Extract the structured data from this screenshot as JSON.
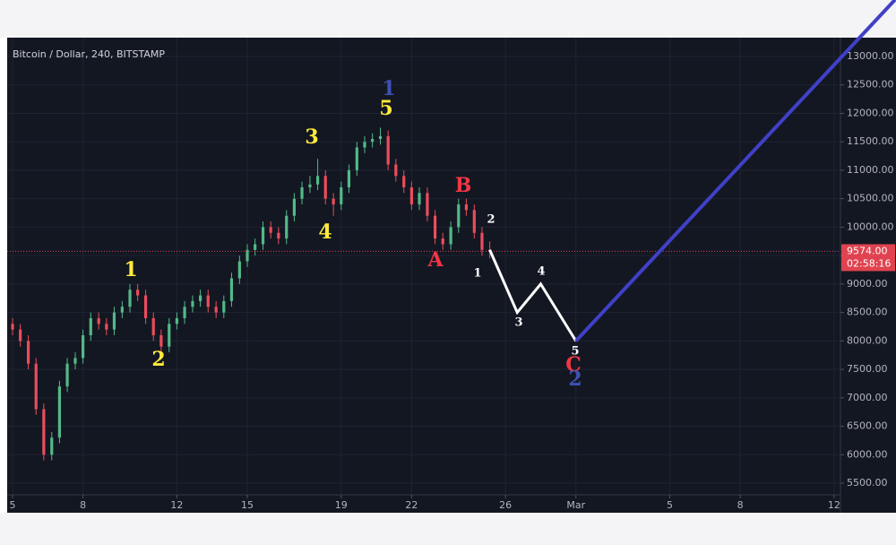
{
  "chart_data": {
    "type": "candlestick",
    "title": "Bitcoin / Dollar, 240, BITSTAMP",
    "up_color": "#53b987",
    "down_color": "#eb4d5c",
    "x": [
      0,
      0.33,
      0.67,
      1,
      1.33,
      1.67,
      2,
      2.33,
      2.67,
      3,
      3.33,
      3.67,
      4,
      4.33,
      4.67,
      5,
      5.33,
      5.67,
      6,
      6.33,
      6.67,
      7,
      7.33,
      7.67,
      8,
      8.33,
      8.67,
      9,
      9.33,
      9.67,
      10,
      10.33,
      10.67,
      11,
      11.33,
      11.67,
      12,
      12.33,
      12.67,
      13,
      13.33,
      13.67,
      14,
      14.33,
      14.67,
      15,
      15.33,
      15.67,
      16,
      16.33,
      16.67,
      17,
      17.33,
      17.67,
      18,
      18.33,
      18.67,
      19,
      19.33,
      19.67,
      20,
      20.33
    ],
    "ohlc": [
      [
        8300,
        8400,
        8100,
        8200
      ],
      [
        8200,
        8300,
        7900,
        8000
      ],
      [
        8000,
        8100,
        7500,
        7600
      ],
      [
        7600,
        7700,
        6700,
        6800
      ],
      [
        6800,
        6900,
        5900,
        6000
      ],
      [
        6000,
        6400,
        5900,
        6300
      ],
      [
        6300,
        7300,
        6200,
        7200
      ],
      [
        7200,
        7700,
        7100,
        7600
      ],
      [
        7600,
        7800,
        7500,
        7700
      ],
      [
        7700,
        8200,
        7600,
        8100
      ],
      [
        8100,
        8500,
        8000,
        8400
      ],
      [
        8400,
        8500,
        8200,
        8300
      ],
      [
        8300,
        8400,
        8100,
        8200
      ],
      [
        8200,
        8600,
        8100,
        8500
      ],
      [
        8500,
        8700,
        8400,
        8600
      ],
      [
        8600,
        9000,
        8500,
        8900
      ],
      [
        8900,
        9000,
        8700,
        8800
      ],
      [
        8800,
        8900,
        8300,
        8400
      ],
      [
        8400,
        8500,
        8000,
        8100
      ],
      [
        8100,
        8200,
        7800,
        7900
      ],
      [
        7900,
        8400,
        7800,
        8300
      ],
      [
        8300,
        8500,
        8200,
        8400
      ],
      [
        8400,
        8700,
        8300,
        8600
      ],
      [
        8600,
        8800,
        8500,
        8700
      ],
      [
        8700,
        8900,
        8600,
        8800
      ],
      [
        8800,
        8900,
        8500,
        8600
      ],
      [
        8600,
        8700,
        8400,
        8500
      ],
      [
        8500,
        8800,
        8400,
        8700
      ],
      [
        8700,
        9200,
        8600,
        9100
      ],
      [
        9100,
        9500,
        9000,
        9400
      ],
      [
        9400,
        9700,
        9300,
        9600
      ],
      [
        9600,
        9800,
        9500,
        9700
      ],
      [
        9700,
        10100,
        9600,
        10000
      ],
      [
        10000,
        10100,
        9800,
        9900
      ],
      [
        9900,
        10000,
        9700,
        9800
      ],
      [
        9800,
        10300,
        9700,
        10200
      ],
      [
        10200,
        10600,
        10100,
        10500
      ],
      [
        10500,
        10800,
        10400,
        10700
      ],
      [
        10700,
        10900,
        10600,
        10750
      ],
      [
        10750,
        11200,
        10650,
        10900
      ],
      [
        10900,
        11000,
        10400,
        10500
      ],
      [
        10500,
        10600,
        10200,
        10400
      ],
      [
        10400,
        10800,
        10300,
        10700
      ],
      [
        10700,
        11100,
        10600,
        11000
      ],
      [
        11000,
        11500,
        10900,
        11400
      ],
      [
        11400,
        11600,
        11300,
        11500
      ],
      [
        11500,
        11650,
        11400,
        11550
      ],
      [
        11550,
        11750,
        11450,
        11600
      ],
      [
        11600,
        11700,
        11000,
        11100
      ],
      [
        11100,
        11200,
        10800,
        10900
      ],
      [
        10900,
        11000,
        10600,
        10700
      ],
      [
        10700,
        10800,
        10300,
        10400
      ],
      [
        10400,
        10700,
        10300,
        10600
      ],
      [
        10600,
        10700,
        10100,
        10200
      ],
      [
        10200,
        10300,
        9700,
        9800
      ],
      [
        9800,
        9900,
        9600,
        9700
      ],
      [
        9700,
        10100,
        9600,
        10000
      ],
      [
        10000,
        10500,
        9900,
        10400
      ],
      [
        10400,
        10500,
        10200,
        10300
      ],
      [
        10300,
        10400,
        9800,
        9900
      ],
      [
        9900,
        10000,
        9500,
        9600
      ],
      [
        9600,
        9750,
        9450,
        9574
      ]
    ],
    "xlim": [
      -0.23,
      35.27
    ],
    "xticks": [
      {
        "value": 0,
        "label": "5"
      },
      {
        "value": 3,
        "label": "8"
      },
      {
        "value": 7,
        "label": "12"
      },
      {
        "value": 10,
        "label": "15"
      },
      {
        "value": 14,
        "label": "19"
      },
      {
        "value": 17,
        "label": "22"
      },
      {
        "value": 21,
        "label": "26"
      },
      {
        "value": 24,
        "label": "Mar"
      },
      {
        "value": 28,
        "label": "5"
      },
      {
        "value": 31,
        "label": "8"
      },
      {
        "value": 35,
        "label": "12"
      }
    ],
    "ylim": [
      5295,
      13331
    ],
    "yticks": [
      {
        "value": 5500,
        "label": "5500.00"
      },
      {
        "value": 6000,
        "label": "6000.00"
      },
      {
        "value": 6500,
        "label": "6500.00"
      },
      {
        "value": 7000,
        "label": "7000.00"
      },
      {
        "value": 7500,
        "label": "7500.00"
      },
      {
        "value": 8000,
        "label": "8000.00"
      },
      {
        "value": 8500,
        "label": "8500.00"
      },
      {
        "value": 9000,
        "label": "9000.00"
      },
      {
        "value": 9500,
        "label": "9500.00"
      },
      {
        "value": 10000,
        "label": "10000.00"
      },
      {
        "value": 10500,
        "label": "10500.00"
      },
      {
        "value": 11000,
        "label": "11000.00"
      },
      {
        "value": 11500,
        "label": "11500.00"
      },
      {
        "value": 12000,
        "label": "12000.00"
      },
      {
        "value": 12500,
        "label": "12500.00"
      },
      {
        "value": 13000,
        "label": "13000.00"
      }
    ],
    "grid": true,
    "last_price": {
      "value": 9574,
      "label": "9574.00",
      "countdown": "02:58:16",
      "color": "#e0424f"
    },
    "projections": [
      {
        "color": "#ffffff",
        "x": [
          20.33,
          21.5,
          22.5,
          24
        ],
        "values": [
          9600,
          8500,
          9000,
          8000
        ]
      },
      {
        "color": "#4040c8",
        "x": [
          24,
          37.6
        ],
        "values": [
          8000,
          14000
        ]
      }
    ],
    "wave_labels": [
      {
        "text": "1",
        "color": "#ffeb3b"
      },
      {
        "text": "2",
        "color": "#ffeb3b"
      },
      {
        "text": "3",
        "color": "#ffeb3b"
      },
      {
        "text": "4",
        "color": "#ffeb3b"
      },
      {
        "text": "5",
        "color": "#ffeb3b"
      },
      {
        "text": "1",
        "color": "#3f51b5"
      },
      {
        "text": "A",
        "color": "#f23645"
      },
      {
        "text": "B",
        "color": "#f23645"
      },
      {
        "text": "1",
        "color": "#ffffff"
      },
      {
        "text": "2",
        "color": "#ffffff"
      },
      {
        "text": "3",
        "color": "#ffffff"
      },
      {
        "text": "4",
        "color": "#ffffff"
      },
      {
        "text": "5",
        "color": "#ffffff"
      },
      {
        "text": "C",
        "color": "#f23645"
      },
      {
        "text": "2",
        "color": "#3f51b5"
      }
    ]
  }
}
